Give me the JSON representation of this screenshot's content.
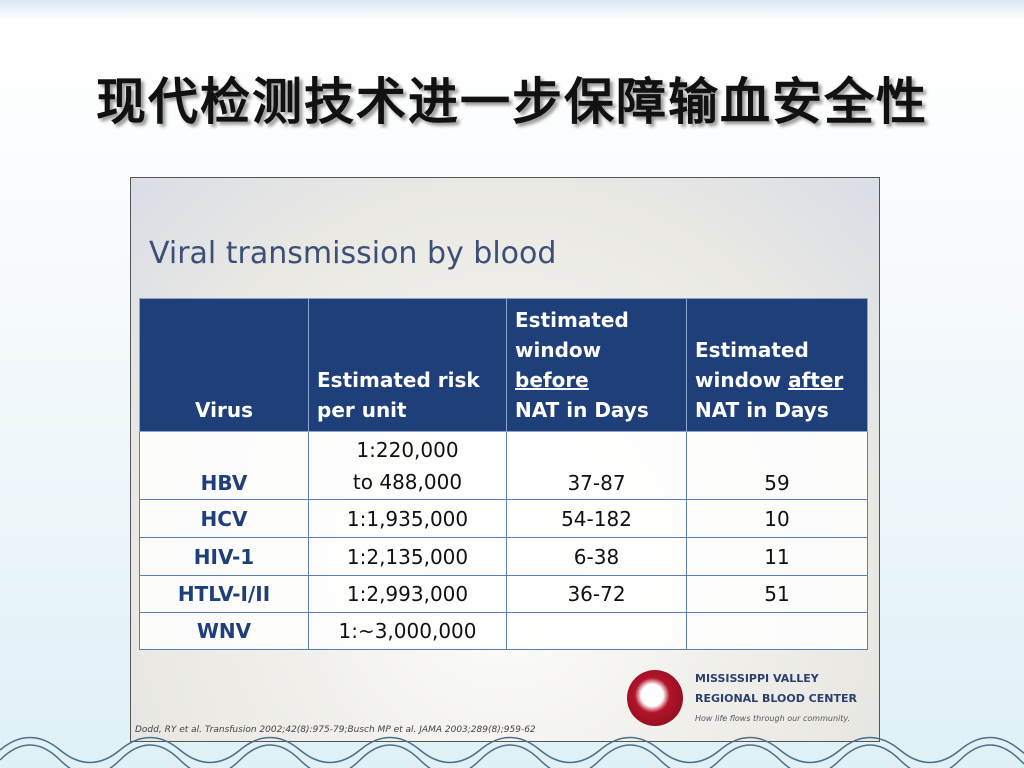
{
  "slide_title": "现代检测技术进一步保障输血安全性",
  "panel": {
    "title": "Viral transmission by blood",
    "table": {
      "headers": [
        {
          "lead": "Virus"
        },
        {
          "lead": "Estimated risk per unit"
        },
        {
          "lead": "Estimated window",
          "underlined": "before",
          "tail": "NAT in Days"
        },
        {
          "lead": "Estimated window",
          "underlined": "after",
          "tail": "NAT in Days"
        }
      ],
      "rows": [
        [
          "HBV",
          [
            "1:220,000",
            "to 488,000"
          ],
          "37-87",
          "59"
        ],
        [
          "HCV",
          [
            "1:1,935,000"
          ],
          "54-182",
          "10"
        ],
        [
          "HIV-1",
          [
            "1:2,135,000"
          ],
          "6-38",
          "11"
        ],
        [
          "HTLV-I/II",
          [
            "1:2,993,000"
          ],
          "36-72",
          "51"
        ],
        [
          "WNV",
          [
            "1:~3,000,000"
          ],
          null,
          null
        ]
      ]
    },
    "citation": "Dodd, RY et al. Transfusion 2002;42(8):975-79;Busch MP et al. JAMA 2003;289(8);959-62",
    "logo": {
      "line1": "MISSISSIPPI VALLEY",
      "line2": "REGIONAL BLOOD CENTER",
      "tagline": "How life flows through our community."
    }
  }
}
